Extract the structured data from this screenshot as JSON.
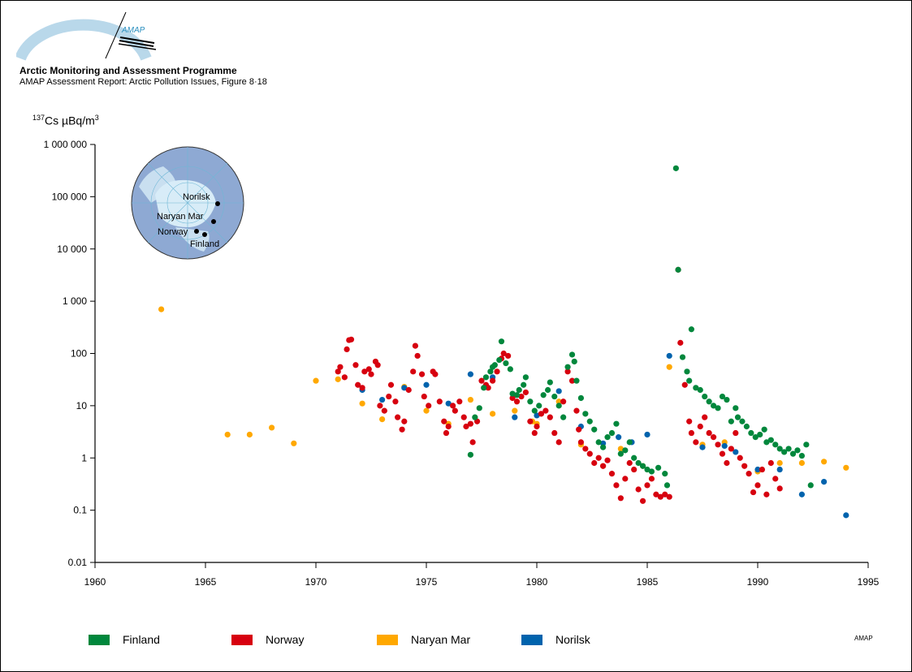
{
  "header": {
    "logo_text": "AMAP",
    "organization": "Arctic Monitoring and Assessment Programme",
    "subtitle": "AMAP Assessment Report: Arctic Pollution Issues, Figure 8·18"
  },
  "map": {
    "labels": [
      "Norilsk",
      "Naryan Mar",
      "Norway",
      "Finland"
    ]
  },
  "footer": {
    "mark": "AMAP"
  },
  "chart_data": {
    "type": "scatter",
    "title": "",
    "ylabel_isotope": "137",
    "ylabel_text": "Cs µBq/m",
    "ylabel_exp": "3",
    "xlabel": "",
    "yscale": "log",
    "xlim": [
      1960,
      1995
    ],
    "ylim": [
      0.01,
      1000000
    ],
    "x_ticks": [
      "1960",
      "1965",
      "1970",
      "1975",
      "1980",
      "1985",
      "1990",
      "1995"
    ],
    "y_ticks": [
      {
        "value": 1000000,
        "label": "1 000 000"
      },
      {
        "value": 100000,
        "label": "100 000"
      },
      {
        "value": 10000,
        "label": "10 000"
      },
      {
        "value": 1000,
        "label": "1 000"
      },
      {
        "value": 100,
        "label": "100"
      },
      {
        "value": 10,
        "label": "10"
      },
      {
        "value": 1,
        "label": "1"
      },
      {
        "value": 0.1,
        "label": "0.1"
      },
      {
        "value": 0.01,
        "label": "0.01"
      }
    ],
    "legend_position": "bottom",
    "series": [
      {
        "name": "Finland",
        "color": "#00873c",
        "points": [
          [
            1977.0,
            1.15
          ],
          [
            1977.2,
            6
          ],
          [
            1977.4,
            9
          ],
          [
            1977.6,
            22
          ],
          [
            1977.7,
            35
          ],
          [
            1977.9,
            45
          ],
          [
            1978.0,
            55
          ],
          [
            1978.1,
            60
          ],
          [
            1978.3,
            75
          ],
          [
            1978.4,
            170
          ],
          [
            1978.6,
            65
          ],
          [
            1978.8,
            50
          ],
          [
            1978.9,
            17
          ],
          [
            1979.1,
            16
          ],
          [
            1979.2,
            20
          ],
          [
            1979.4,
            25
          ],
          [
            1979.5,
            35
          ],
          [
            1979.7,
            12
          ],
          [
            1979.9,
            8
          ],
          [
            1980.1,
            10
          ],
          [
            1980.3,
            16
          ],
          [
            1980.5,
            20
          ],
          [
            1980.6,
            28
          ],
          [
            1980.8,
            15
          ],
          [
            1981.0,
            10
          ],
          [
            1981.2,
            6
          ],
          [
            1981.4,
            55
          ],
          [
            1981.6,
            95
          ],
          [
            1981.7,
            70
          ],
          [
            1981.8,
            30
          ],
          [
            1982.0,
            14
          ],
          [
            1982.2,
            7
          ],
          [
            1982.4,
            5
          ],
          [
            1982.6,
            3.5
          ],
          [
            1982.8,
            2
          ],
          [
            1983.0,
            1.6
          ],
          [
            1983.2,
            2.5
          ],
          [
            1983.4,
            3
          ],
          [
            1983.6,
            4.5
          ],
          [
            1983.8,
            1.2
          ],
          [
            1984.0,
            1.4
          ],
          [
            1984.2,
            2
          ],
          [
            1984.4,
            1
          ],
          [
            1984.6,
            0.8
          ],
          [
            1984.8,
            0.7
          ],
          [
            1985.0,
            0.6
          ],
          [
            1985.2,
            0.55
          ],
          [
            1985.5,
            0.65
          ],
          [
            1985.8,
            0.5
          ],
          [
            1985.9,
            0.3
          ],
          [
            1986.3,
            350000
          ],
          [
            1986.4,
            4000
          ],
          [
            1986.6,
            85
          ],
          [
            1986.8,
            45
          ],
          [
            1986.9,
            30
          ],
          [
            1987.0,
            290
          ],
          [
            1987.2,
            22
          ],
          [
            1987.4,
            20
          ],
          [
            1987.6,
            15
          ],
          [
            1987.8,
            12
          ],
          [
            1988.0,
            10
          ],
          [
            1988.2,
            9
          ],
          [
            1988.4,
            15
          ],
          [
            1988.6,
            13
          ],
          [
            1988.8,
            5
          ],
          [
            1989.0,
            9
          ],
          [
            1989.1,
            6
          ],
          [
            1989.3,
            5
          ],
          [
            1989.5,
            4
          ],
          [
            1989.7,
            3
          ],
          [
            1989.9,
            2.5
          ],
          [
            1990.1,
            2.8
          ],
          [
            1990.3,
            3.5
          ],
          [
            1990.4,
            2
          ],
          [
            1990.6,
            2.2
          ],
          [
            1990.8,
            1.8
          ],
          [
            1991.0,
            1.5
          ],
          [
            1991.2,
            1.3
          ],
          [
            1991.4,
            1.5
          ],
          [
            1991.6,
            1.2
          ],
          [
            1991.8,
            1.4
          ],
          [
            1992.0,
            1.1
          ],
          [
            1992.2,
            1.8
          ],
          [
            1992.4,
            0.3
          ]
        ]
      },
      {
        "name": "Norway",
        "color": "#d7000f",
        "points": [
          [
            1971.0,
            45
          ],
          [
            1971.1,
            55
          ],
          [
            1971.3,
            35
          ],
          [
            1971.4,
            120
          ],
          [
            1971.5,
            180
          ],
          [
            1971.6,
            185
          ],
          [
            1971.8,
            60
          ],
          [
            1971.9,
            25
          ],
          [
            1972.1,
            22
          ],
          [
            1972.2,
            45
          ],
          [
            1972.4,
            50
          ],
          [
            1972.5,
            40
          ],
          [
            1972.7,
            70
          ],
          [
            1972.8,
            60
          ],
          [
            1972.9,
            10
          ],
          [
            1973.1,
            8
          ],
          [
            1973.3,
            15
          ],
          [
            1973.4,
            25
          ],
          [
            1973.6,
            12
          ],
          [
            1973.7,
            6
          ],
          [
            1973.9,
            3.5
          ],
          [
            1974.0,
            5
          ],
          [
            1974.2,
            20
          ],
          [
            1974.4,
            45
          ],
          [
            1974.5,
            140
          ],
          [
            1974.6,
            90
          ],
          [
            1974.8,
            40
          ],
          [
            1974.9,
            15
          ],
          [
            1975.1,
            10
          ],
          [
            1975.3,
            45
          ],
          [
            1975.4,
            40
          ],
          [
            1975.6,
            12
          ],
          [
            1975.8,
            5
          ],
          [
            1975.9,
            3
          ],
          [
            1976.0,
            4
          ],
          [
            1976.2,
            10
          ],
          [
            1976.3,
            8
          ],
          [
            1976.5,
            12
          ],
          [
            1976.7,
            6
          ],
          [
            1976.8,
            4
          ],
          [
            1977.0,
            4.5
          ],
          [
            1977.1,
            2
          ],
          [
            1977.3,
            5
          ],
          [
            1977.5,
            30
          ],
          [
            1977.7,
            25
          ],
          [
            1977.8,
            22
          ],
          [
            1978.0,
            30
          ],
          [
            1978.2,
            45
          ],
          [
            1978.4,
            80
          ],
          [
            1978.5,
            100
          ],
          [
            1978.7,
            90
          ],
          [
            1978.9,
            14
          ],
          [
            1979.1,
            12
          ],
          [
            1979.3,
            15
          ],
          [
            1979.5,
            18
          ],
          [
            1979.7,
            5
          ],
          [
            1979.9,
            3
          ],
          [
            1980.0,
            4
          ],
          [
            1980.2,
            7
          ],
          [
            1980.4,
            8
          ],
          [
            1980.6,
            6
          ],
          [
            1980.8,
            3
          ],
          [
            1981.0,
            2
          ],
          [
            1981.2,
            12
          ],
          [
            1981.4,
            45
          ],
          [
            1981.6,
            30
          ],
          [
            1981.8,
            8
          ],
          [
            1981.9,
            3.5
          ],
          [
            1982.0,
            2
          ],
          [
            1982.2,
            1.5
          ],
          [
            1982.4,
            1.2
          ],
          [
            1982.6,
            0.8
          ],
          [
            1982.8,
            1
          ],
          [
            1983.0,
            0.7
          ],
          [
            1983.2,
            0.9
          ],
          [
            1983.4,
            0.5
          ],
          [
            1983.6,
            0.3
          ],
          [
            1983.8,
            0.17
          ],
          [
            1984.0,
            0.4
          ],
          [
            1984.2,
            0.8
          ],
          [
            1984.4,
            0.6
          ],
          [
            1984.6,
            0.25
          ],
          [
            1984.8,
            0.15
          ],
          [
            1985.0,
            0.3
          ],
          [
            1985.2,
            0.4
          ],
          [
            1985.4,
            0.2
          ],
          [
            1985.6,
            0.18
          ],
          [
            1985.8,
            0.2
          ],
          [
            1986.0,
            0.18
          ],
          [
            1986.4,
            4000
          ],
          [
            1986.5,
            160
          ],
          [
            1986.7,
            25
          ],
          [
            1986.9,
            5
          ],
          [
            1987.0,
            3
          ],
          [
            1987.2,
            2
          ],
          [
            1987.4,
            4
          ],
          [
            1987.6,
            6
          ],
          [
            1987.8,
            3
          ],
          [
            1988.0,
            2.5
          ],
          [
            1988.2,
            1.8
          ],
          [
            1988.4,
            1.2
          ],
          [
            1988.6,
            0.8
          ],
          [
            1988.8,
            1.5
          ],
          [
            1989.0,
            3
          ],
          [
            1989.2,
            1
          ],
          [
            1989.4,
            0.7
          ],
          [
            1989.6,
            0.5
          ],
          [
            1989.8,
            0.22
          ],
          [
            1990.0,
            0.3
          ],
          [
            1990.2,
            0.6
          ],
          [
            1990.4,
            0.2
          ],
          [
            1990.6,
            0.8
          ],
          [
            1990.8,
            0.4
          ],
          [
            1991.0,
            0.26
          ]
        ]
      },
      {
        "name": "Naryan Mar",
        "color": "#ffa800",
        "points": [
          [
            1963.0,
            700
          ],
          [
            1966.0,
            2.8
          ],
          [
            1967.0,
            2.8
          ],
          [
            1968.0,
            3.8
          ],
          [
            1969.0,
            1.9
          ],
          [
            1970.0,
            30
          ],
          [
            1971.0,
            32
          ],
          [
            1972.1,
            11
          ],
          [
            1973.0,
            5.5
          ],
          [
            1974.0,
            23
          ],
          [
            1975.0,
            8
          ],
          [
            1976.0,
            4.5
          ],
          [
            1977.0,
            13
          ],
          [
            1978.0,
            7
          ],
          [
            1979.0,
            8
          ],
          [
            1979.8,
            5
          ],
          [
            1980.0,
            4.5
          ],
          [
            1981.0,
            12
          ],
          [
            1982.0,
            1.8
          ],
          [
            1983.0,
            0.7
          ],
          [
            1983.8,
            1.5
          ],
          [
            1984.8,
            0.7
          ],
          [
            1986.0,
            55
          ],
          [
            1987.5,
            1.8
          ],
          [
            1988.5,
            2
          ],
          [
            1990.0,
            0.55
          ],
          [
            1991.0,
            0.8
          ],
          [
            1992.0,
            0.8
          ],
          [
            1993.0,
            0.85
          ],
          [
            1994.0,
            0.65
          ]
        ]
      },
      {
        "name": "Norilsk",
        "color": "#0063ad",
        "points": [
          [
            1972.1,
            20
          ],
          [
            1973.0,
            13
          ],
          [
            1974.0,
            22
          ],
          [
            1975.0,
            25
          ],
          [
            1976.0,
            11
          ],
          [
            1977.0,
            40
          ],
          [
            1978.0,
            35
          ],
          [
            1979.0,
            6
          ],
          [
            1980.0,
            6.5
          ],
          [
            1981.0,
            19
          ],
          [
            1982.0,
            4
          ],
          [
            1983.0,
            1.9
          ],
          [
            1983.7,
            2.5
          ],
          [
            1984.3,
            2
          ],
          [
            1985.0,
            2.8
          ],
          [
            1986.0,
            90
          ],
          [
            1987.5,
            1.6
          ],
          [
            1988.5,
            1.7
          ],
          [
            1989.0,
            1.3
          ],
          [
            1990.0,
            0.6
          ],
          [
            1991.0,
            0.6
          ],
          [
            1992.0,
            0.2
          ],
          [
            1993.0,
            0.35
          ],
          [
            1994.0,
            0.08
          ]
        ]
      }
    ]
  }
}
